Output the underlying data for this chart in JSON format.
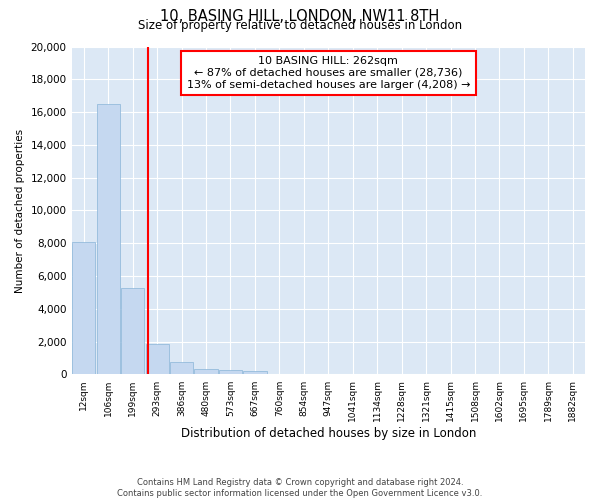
{
  "title": "10, BASING HILL, LONDON, NW11 8TH",
  "subtitle": "Size of property relative to detached houses in London",
  "xlabel": "Distribution of detached houses by size in London",
  "ylabel": "Number of detached properties",
  "bar_color": "#c5d8f0",
  "bar_edge_color": "#89b4d8",
  "background_color": "#dce8f5",
  "categories": [
    "12sqm",
    "106sqm",
    "199sqm",
    "293sqm",
    "386sqm",
    "480sqm",
    "573sqm",
    "667sqm",
    "760sqm",
    "854sqm",
    "947sqm",
    "1041sqm",
    "1134sqm",
    "1228sqm",
    "1321sqm",
    "1415sqm",
    "1508sqm",
    "1602sqm",
    "1695sqm",
    "1789sqm",
    "1882sqm"
  ],
  "values": [
    8100,
    16500,
    5300,
    1850,
    750,
    350,
    280,
    210,
    0,
    0,
    0,
    0,
    0,
    0,
    0,
    0,
    0,
    0,
    0,
    0,
    0
  ],
  "red_line_x": 2.62,
  "annotation_title": "10 BASING HILL: 262sqm",
  "annotation_line1": "← 87% of detached houses are smaller (28,736)",
  "annotation_line2": "13% of semi-detached houses are larger (4,208) →",
  "ylim": [
    0,
    20000
  ],
  "yticks": [
    0,
    2000,
    4000,
    6000,
    8000,
    10000,
    12000,
    14000,
    16000,
    18000,
    20000
  ],
  "footer_line1": "Contains HM Land Registry data © Crown copyright and database right 2024.",
  "footer_line2": "Contains public sector information licensed under the Open Government Licence v3.0."
}
